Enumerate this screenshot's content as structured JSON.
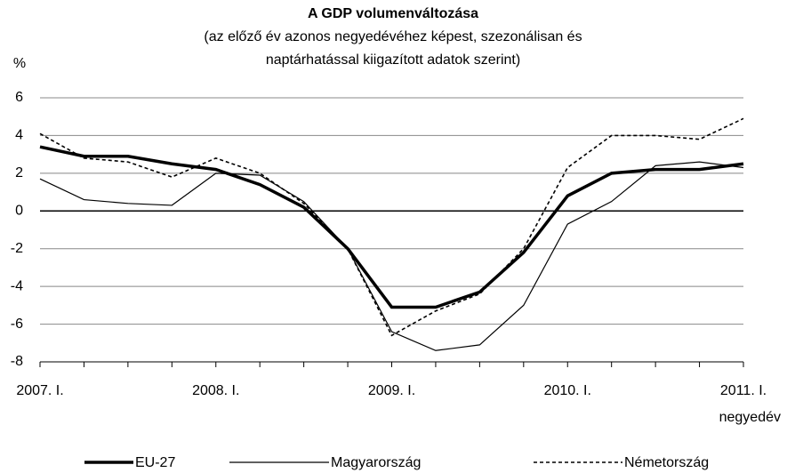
{
  "chart_data": {
    "type": "line",
    "title": "A GDP volumenváltozása",
    "subtitle": [
      "(az előző év azonos negyedévéhez képest, szezonálisan és",
      "naptárhatással kiigazított adatok szerint)"
    ],
    "y_label": "%",
    "x_label": "negyedév",
    "categories": [
      "2007. I.",
      null,
      null,
      null,
      "2008. I.",
      null,
      null,
      null,
      "2009. I.",
      null,
      null,
      null,
      "2010. I.",
      null,
      null,
      null,
      "2011. I."
    ],
    "series": [
      {
        "name": "EU-27",
        "color": "#000000",
        "style": "thick",
        "values": [
          3.4,
          2.9,
          2.9,
          2.5,
          2.2,
          1.4,
          0.2,
          -2.0,
          -5.1,
          -5.1,
          -4.3,
          -2.2,
          0.8,
          2.0,
          2.2,
          2.2,
          2.5
        ]
      },
      {
        "name": "Magyarország",
        "color": "#000000",
        "style": "thin",
        "values": [
          1.7,
          0.6,
          0.4,
          0.3,
          2.0,
          1.9,
          0.5,
          -2.0,
          -6.4,
          -7.4,
          -7.1,
          -5.0,
          -0.7,
          0.5,
          2.4,
          2.6,
          2.3
        ]
      },
      {
        "name": "Németország",
        "color": "#000000",
        "style": "dashed",
        "values": [
          4.1,
          2.8,
          2.6,
          1.8,
          2.8,
          2.0,
          0.4,
          -2.0,
          -6.6,
          -5.3,
          -4.4,
          -2.0,
          2.3,
          4.0,
          4.0,
          3.8,
          4.9
        ]
      }
    ],
    "ylim": [
      -8,
      6
    ],
    "yticks": [
      -8,
      -6,
      -4,
      -2,
      0,
      2,
      4,
      6
    ],
    "grid": true
  }
}
